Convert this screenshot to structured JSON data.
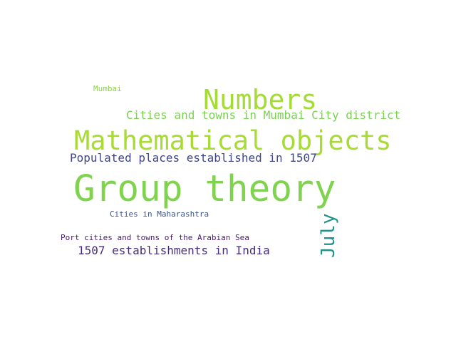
{
  "words": [
    {
      "text": "Mumbai",
      "color": "#8fd14f"
    },
    {
      "text": "Numbers",
      "color": "#a5db36"
    },
    {
      "text": "Cities and towns in Mumbai City district",
      "color": "#7ad151"
    },
    {
      "text": "Mathematical objects",
      "color": "#a8db34"
    },
    {
      "text": "Populated places established in 1507",
      "color": "#404688"
    },
    {
      "text": "Group theory",
      "color": "#7fd34e"
    },
    {
      "text": "Cities in Maharashtra",
      "color": "#3b528b"
    },
    {
      "text": "Port cities and towns of the Arabian Sea",
      "color": "#481a6c"
    },
    {
      "text": "1507 establishments in India",
      "color": "#472d7b"
    },
    {
      "text": "July",
      "color": "#21918c"
    }
  ]
}
